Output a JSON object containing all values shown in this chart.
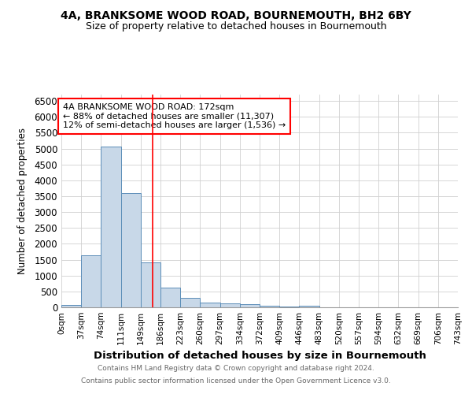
{
  "title1": "4A, BRANKSOME WOOD ROAD, BOURNEMOUTH, BH2 6BY",
  "title2": "Size of property relative to detached houses in Bournemouth",
  "xlabel": "Distribution of detached houses by size in Bournemouth",
  "ylabel": "Number of detached properties",
  "bin_labels": [
    "0sqm",
    "37sqm",
    "74sqm",
    "111sqm",
    "149sqm",
    "186sqm",
    "223sqm",
    "260sqm",
    "297sqm",
    "334sqm",
    "372sqm",
    "409sqm",
    "446sqm",
    "483sqm",
    "520sqm",
    "557sqm",
    "594sqm",
    "632sqm",
    "669sqm",
    "706sqm",
    "743sqm"
  ],
  "bar_values": [
    75,
    1650,
    5070,
    3600,
    1420,
    620,
    305,
    160,
    125,
    90,
    40,
    30,
    60,
    0,
    0,
    0,
    0,
    0,
    0,
    0,
    0
  ],
  "bar_color": "#c8d8e8",
  "bar_edge_color": "#5b8db8",
  "property_size": 172,
  "annotation_line1": "4A BRANKSOME WOOD ROAD: 172sqm",
  "annotation_line2": "← 88% of detached houses are smaller (11,307)",
  "annotation_line3": "12% of semi-detached houses are larger (1,536) →",
  "ylim": [
    0,
    6700
  ],
  "yticks": [
    0,
    500,
    1000,
    1500,
    2000,
    2500,
    3000,
    3500,
    4000,
    4500,
    5000,
    5500,
    6000,
    6500
  ],
  "footnote1": "Contains HM Land Registry data © Crown copyright and database right 2024.",
  "footnote2": "Contains public sector information licensed under the Open Government Licence v3.0.",
  "background_color": "#ffffff",
  "grid_color": "#d0d0d0"
}
